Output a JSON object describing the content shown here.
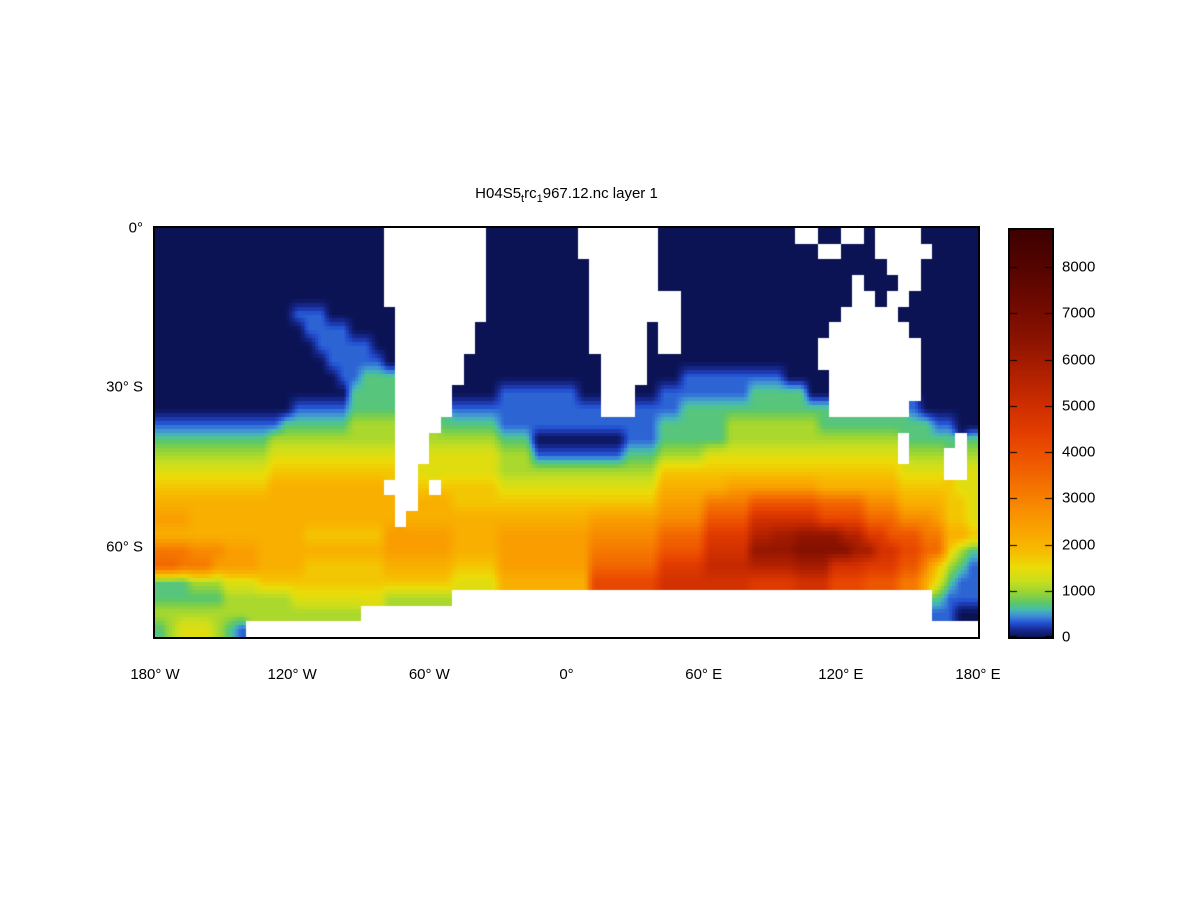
{
  "title": {
    "part1": "H04S5",
    "sub1": "t",
    "part2": "rc",
    "sub2": "1",
    "part3": "967.12.nc layer 1"
  },
  "chart_data": {
    "type": "heatmap",
    "title_tex": "H04S5_trc_1967.12.nc layer 1",
    "x_axis": {
      "tick_labels": [
        "180° W",
        "120° W",
        "60° W",
        "0°",
        "60° E",
        "120° E",
        "180° E"
      ],
      "tick_values": [
        -180,
        -120,
        -60,
        0,
        60,
        120,
        180
      ],
      "range": [
        -180,
        180
      ]
    },
    "y_axis": {
      "tick_labels": [
        "0°",
        "30° S",
        "60° S"
      ],
      "tick_values": [
        0,
        -30,
        -60
      ],
      "range": [
        0,
        -77
      ]
    },
    "colorbar": {
      "tick_labels": [
        "0",
        "1000",
        "2000",
        "3000",
        "4000",
        "5000",
        "6000",
        "7000",
        "8000"
      ],
      "tick_values": [
        0,
        1000,
        2000,
        3000,
        4000,
        5000,
        6000,
        7000,
        8000
      ],
      "vmin": 0,
      "vmax": 8800,
      "stops": [
        [
          0,
          "#0B1355"
        ],
        [
          150,
          "#16288F"
        ],
        [
          300,
          "#2350D2"
        ],
        [
          450,
          "#3E8CD8"
        ],
        [
          600,
          "#48BEAA"
        ],
        [
          750,
          "#5FC865"
        ],
        [
          950,
          "#96D437"
        ],
        [
          1200,
          "#C8DE1E"
        ],
        [
          1500,
          "#EBDC08"
        ],
        [
          1900,
          "#F8B900"
        ],
        [
          2400,
          "#F9A000"
        ],
        [
          3000,
          "#F78000"
        ],
        [
          3700,
          "#F05C00"
        ],
        [
          4400,
          "#E43E00"
        ],
        [
          5100,
          "#CB2C00"
        ],
        [
          5800,
          "#AA1E00"
        ],
        [
          6500,
          "#891200"
        ],
        [
          7200,
          "#700A00"
        ],
        [
          8000,
          "#540400"
        ],
        [
          8800,
          "#3E0000"
        ]
      ]
    },
    "grid": {
      "lon_start": -180,
      "lon_step_deg": 5,
      "lat_start": 0,
      "lat_step_deg": -3,
      "n_cols": 72,
      "n_rows": 26,
      "encoding": "one char per cell; value = (charCode - 97) * 350; '.' = land (white)",
      "land_color": "#FFFFFF",
      "rows": [
        "aaaaaaaaaaaaaaaaaaaa.........aaaaaaaa.......aaaaaaaaaaaa..aa..a....aaaaa",
        "aaaaaaaaaaaaaaaaaaaa.........aaaaaaaa.......aaaaaaaaaaaaaa..aaa.....aaaa",
        "aaaaaaaaaaaaaaaaaaaa.........aaaaaaaaa......aaaaaaaaaaaaaaaaaaaa...aaaaa",
        "aaaaaaaaaaaaaaaaaaaa.........aaaaaaaaa......aaaaaaaaaaaaaaaaa.aaa..aaaaa",
        "aaaaaaaaaaaaaaaaaaaa.........aaaaaaaaa........aaaaaaaaaaaaaaa..a..aaaaaa",
        "aaaaaaaaaaaabbbaaaaaa........aaaaaaaaa........aaaaaaaaaaaaaa.....aaaaaaa",
        "aaaaaaaaaaaaabbbbaaaa.......aaaaaaaaaa.....a..aaaaaaaaaaaaa.......aaaaaa",
        "aaaaaaaaaaaaaabbbbbaa.......aaaaaaaaaa.....a..aaaaaaaaaaaa.........aaaaa",
        "aaaaaaaaaaaaaaabbbbba......aaaaaaaaaaaa....aaaaaaaaaaaaaaa.........aaaaa",
        "aaaaaaaaaaaaaaaabbccc......aaaaaaaaaaaa....aaabbbbbbbbbaaaa........aaaaa",
        "aaaaaaaaaaaaaaaaacccc.....aaaabbbbbbbaa...aabbbbbbbbcccccaa........aaaaa",
        "aaaaaaaaaaaabbbbbcccc.....bbbbbbbbbbbbb...bbbbccccccccccccc.......baaaaa",
        "bbbbbbbbbbbccccccdddd....cccccbbbbbbbbbbbbbbccccccddddddddccccccccccbbaa",
        "ccccccccccddddddddddd...ddddddcccaaaaaaaabbbccccccddddddddddddddd.cccc.c",
        "ddddddddddeeeeeeeeeee...eeeeeedddbbbbbbbbcccddddeeeeeeeeeeeeeeeee.ddd..d",
        "eeeeeeeeeefffffffffff..eeeeeeeddddddddddddddfffffffffffffffffffffeeee..e",
        "ffffffffffgggggggggg...f.fffffeeeeeeeeeeeeeegggggghhhhhhhhgggggggfffffee",
        "ggggggggggggggggggggg..gggffffffffffffffffffhhhhjjjjllllllkkkkiiiggggffe",
        "hhhgggggggggggggggggg.gggggggggggggggghhhhhhiiiilllloooooommmmkkkiiihffe",
        "gggggggggggggfffffffhhhhhhgggghhhhhhhhiiiiiikkkknnnnqqrrssssqqnnllljjggf",
        "jjjiiihhhggggggggggghhhhhhgggghhhhhhhhjjjjjjlllloooosssstttttrroommkkfdc",
        "kkjjjhhhhggggfffffffggggggffffhhhhhhhhkkkkkknnnnppppqqqqrrrooonnnllifdcb",
        "cccdddeeefffffffffffffffffeeeeggggggggmmmmmmoooooooonnnnooommmllljjgecbb",
        "ccccccddddddeeeeeeeedddddd..........................................cbbb",
        "dddddddddddddddddd..................................................bbaa",
        "cdeeedcb................................................................"
      ]
    }
  }
}
